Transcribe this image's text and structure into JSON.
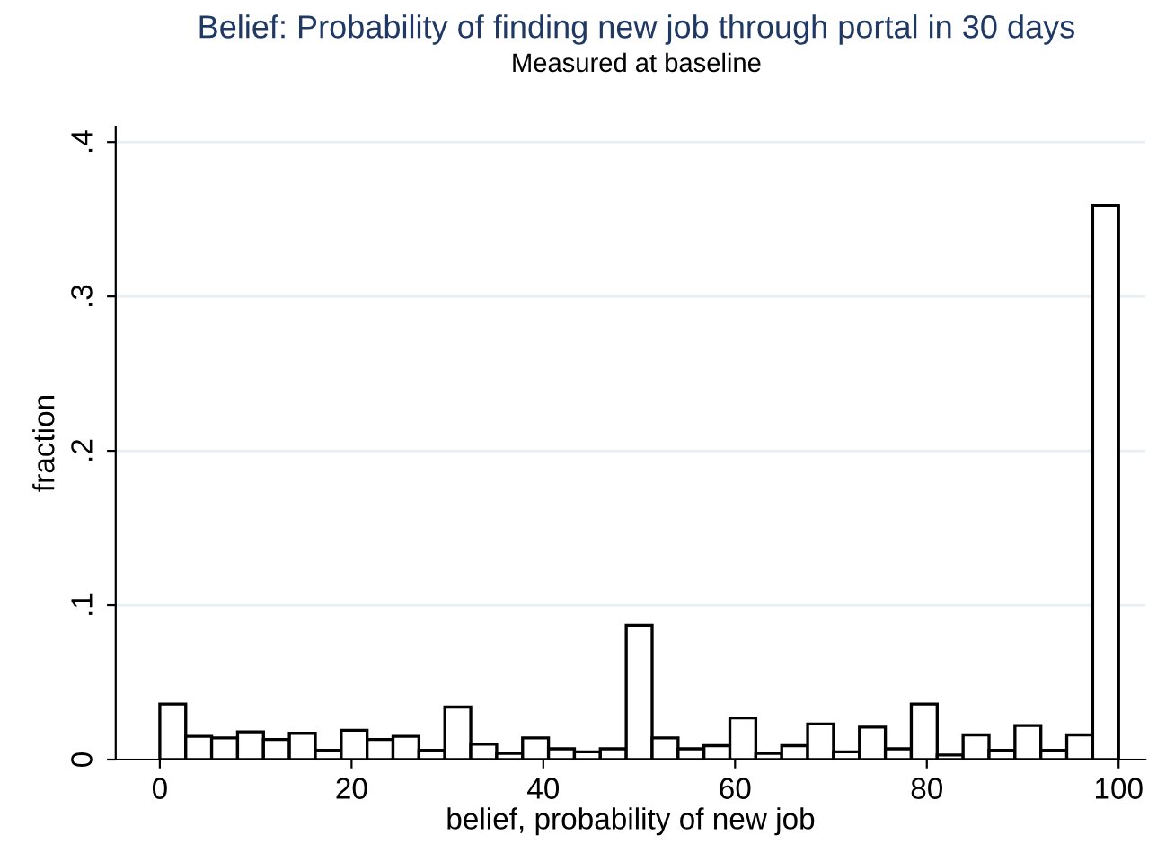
{
  "chart_data": {
    "type": "histogram",
    "title": "Belief: Probability of finding new job through portal in 30 days",
    "subtitle": "Measured at baseline",
    "xlabel": "belief, probability of new job",
    "ylabel": "fraction",
    "bins": [
      0,
      2.7027,
      5.4054,
      8.1081,
      10.8108,
      13.5135,
      16.2162,
      18.9189,
      21.6216,
      24.3243,
      27.027,
      29.7297,
      32.4324,
      35.1351,
      37.8378,
      40.5405,
      43.2432,
      45.9459,
      48.6486,
      51.3514,
      54.0541,
      56.7568,
      59.4595,
      62.1622,
      64.8649,
      67.5676,
      70.2703,
      72.973,
      75.6757,
      78.3784,
      81.0811,
      83.7838,
      86.4865,
      89.1892,
      91.8919,
      94.5946,
      97.2973,
      100
    ],
    "values": [
      0.036,
      0.015,
      0.014,
      0.018,
      0.013,
      0.017,
      0.006,
      0.019,
      0.013,
      0.015,
      0.006,
      0.034,
      0.01,
      0.004,
      0.014,
      0.007,
      0.005,
      0.007,
      0.087,
      0.014,
      0.007,
      0.009,
      0.027,
      0.004,
      0.009,
      0.023,
      0.005,
      0.021,
      0.007,
      0.036,
      0.003,
      0.016,
      0.006,
      0.022,
      0.006,
      0.016,
      0.359
    ],
    "color": "#ffffff",
    "xlim": [
      -4.6,
      102.8
    ],
    "ylim": [
      0,
      0.41
    ],
    "xticks": [
      0,
      20,
      40,
      60,
      80,
      100
    ],
    "yticks": [
      {
        "value": 0,
        "label": "0"
      },
      {
        "value": 0.1,
        "label": ".1"
      },
      {
        "value": 0.2,
        "label": ".2"
      },
      {
        "value": 0.3,
        "label": ".3"
      },
      {
        "value": 0.4,
        "label": ".4"
      }
    ],
    "grid": "y"
  }
}
